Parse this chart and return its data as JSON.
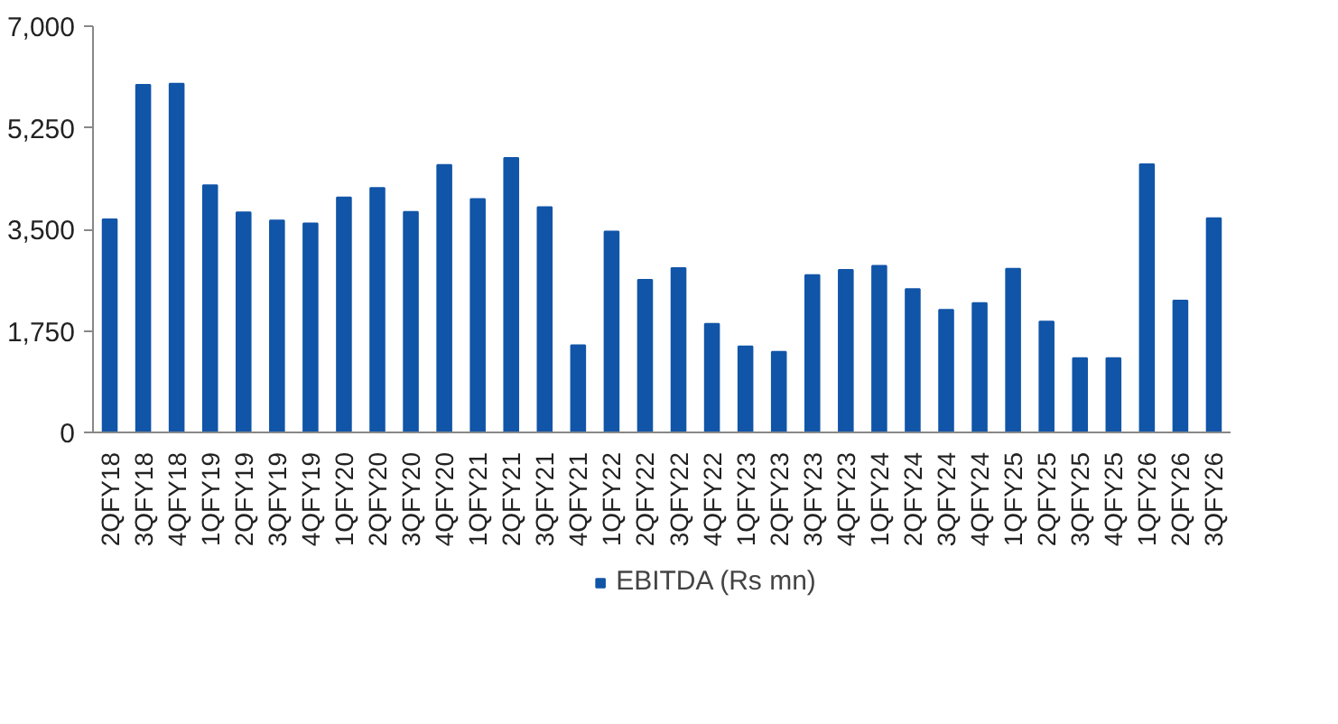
{
  "chart_data": {
    "type": "bar",
    "categories": [
      "2QFY18",
      "3QFY18",
      "4QFY18",
      "1QFY19",
      "2QFY19",
      "3QFY19",
      "4QFY19",
      "1QFY20",
      "2QFY20",
      "3QFY20",
      "4QFY20",
      "1QFY21",
      "2QFY21",
      "3QFY21",
      "4QFY21",
      "1QFY22",
      "2QFY22",
      "3QFY22",
      "4QFY22",
      "1QFY23",
      "2QFY23",
      "3QFY23",
      "4QFY23",
      "1QFY24",
      "2QFY24",
      "3QFY24",
      "4QFY24",
      "1QFY25",
      "2QFY25",
      "3QFY25",
      "4QFY25",
      "1QFY26",
      "2QFY26",
      "3QFY26"
    ],
    "series": [
      {
        "name": "EBITDA (Rs mn)",
        "color": "#1155a8",
        "values": [
          3670,
          5990,
          6010,
          4260,
          3790,
          3650,
          3600,
          4050,
          4210,
          3800,
          4610,
          4020,
          4730,
          3880,
          1500,
          3460,
          2630,
          2830,
          1870,
          1480,
          1390,
          2710,
          2800,
          2870,
          2470,
          2110,
          2230,
          2820,
          1910,
          1280,
          1280,
          4620,
          2270,
          3690
        ]
      }
    ],
    "ylim": [
      0,
      7000
    ],
    "yticks": [
      {
        "value": 0,
        "label": "0"
      },
      {
        "value": 1750,
        "label": "1,750"
      },
      {
        "value": 3500,
        "label": "3,500"
      },
      {
        "value": 5250,
        "label": "5,250"
      },
      {
        "value": 7000,
        "label": "7,000"
      }
    ],
    "grid": false,
    "legend": "bottom"
  }
}
